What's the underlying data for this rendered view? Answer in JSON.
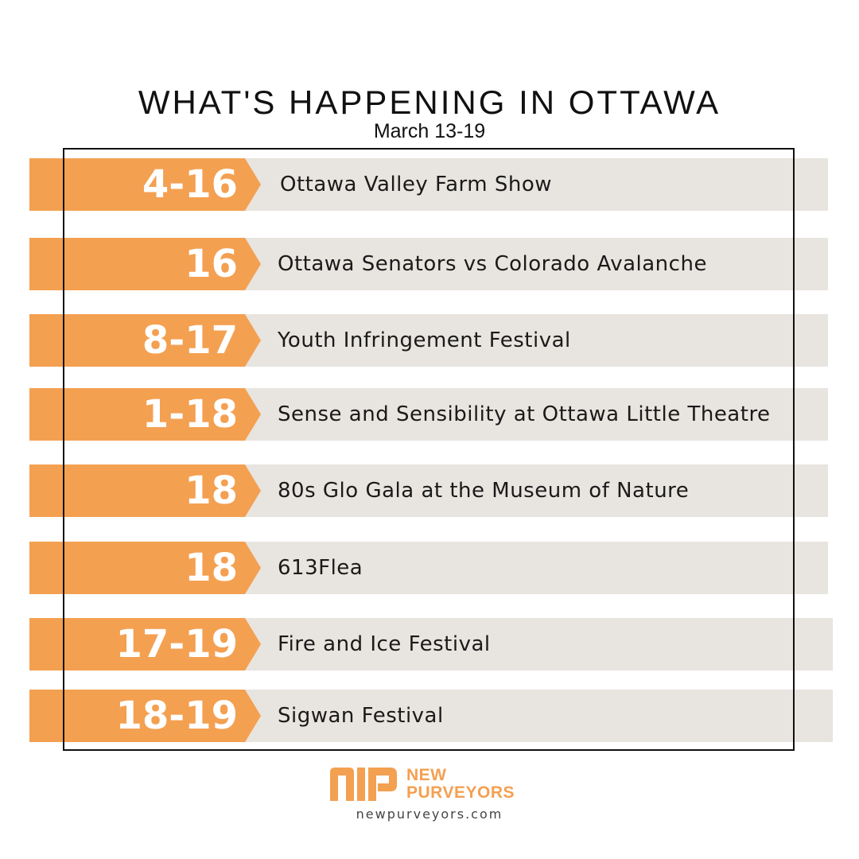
{
  "header": {
    "title": "WHAT'S HAPPENING IN OTTAWA",
    "subtitle": "March 13-19"
  },
  "colors": {
    "accent": "#f4a051",
    "row_background": "#e8e4df",
    "text": "#111111"
  },
  "events": [
    {
      "dates": "4-16",
      "name": "Ottawa Valley Farm Show"
    },
    {
      "dates": "16",
      "name": "Ottawa Senators vs Colorado Avalanche"
    },
    {
      "dates": "8-17",
      "name": "Youth Infringement Festival"
    },
    {
      "dates": "1-18",
      "name": "Sense and Sensibility at Ottawa Little Theatre"
    },
    {
      "dates": "18",
      "name": "80s Glo Gala at the Museum of Nature"
    },
    {
      "dates": "18",
      "name": "613Flea"
    },
    {
      "dates": "17-19",
      "name": "Fire and Ice Festival"
    },
    {
      "dates": "18-19",
      "name": "Sigwan Festival"
    }
  ],
  "footer": {
    "brand_line1": "NEW",
    "brand_line2": "PURVEYORS",
    "website": "newpurveyors.com"
  }
}
